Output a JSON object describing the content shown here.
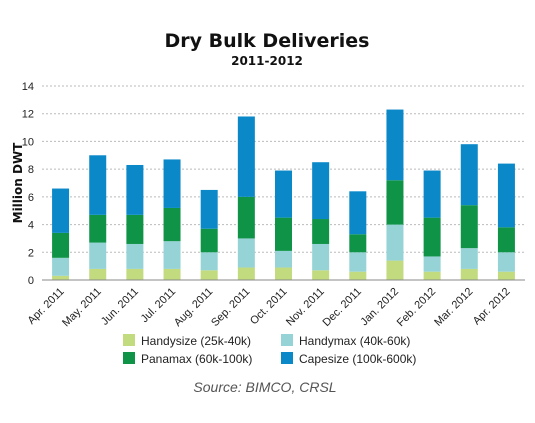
{
  "chart_data": {
    "type": "bar",
    "stacked": true,
    "title": "Dry Bulk Deliveries",
    "subtitle": "2011-2012",
    "xlabel": "",
    "ylabel": "Million DWT",
    "ylim": [
      0,
      14
    ],
    "yticks": [
      "0",
      "2",
      "4",
      "6",
      "8",
      "10",
      "12",
      "14"
    ],
    "grid": true,
    "legend_position": "bottom",
    "categories": [
      "Apr. 2011",
      "May. 2011",
      "Jun. 2011",
      "Jul. 2011",
      "Aug. 2011",
      "Sep. 2011",
      "Oct. 2011",
      "Nov. 2011",
      "Dec. 2011",
      "Jan. 2012",
      "Feb. 2012",
      "Mar. 2012",
      "Apr. 2012"
    ],
    "series": [
      {
        "name": "Handysize (25k-40k)",
        "color": "#c2db7f",
        "values": [
          0.3,
          0.8,
          0.8,
          0.8,
          0.7,
          0.9,
          0.9,
          0.7,
          0.6,
          1.4,
          0.6,
          0.8,
          0.6
        ]
      },
      {
        "name": "Handymax (40k-60k)",
        "color": "#96d3d6",
        "values": [
          1.3,
          1.9,
          1.8,
          2.0,
          1.3,
          2.1,
          1.2,
          1.9,
          1.4,
          2.6,
          1.1,
          1.5,
          1.4
        ]
      },
      {
        "name": "Panamax (60k-100k)",
        "color": "#0f9447",
        "values": [
          1.8,
          2.0,
          2.1,
          2.4,
          1.7,
          3.0,
          2.4,
          1.8,
          1.3,
          3.2,
          2.8,
          3.1,
          1.8
        ]
      },
      {
        "name": "Capesize (100k-600k)",
        "color": "#0a88c8",
        "values": [
          3.2,
          4.3,
          3.6,
          3.5,
          2.8,
          5.8,
          3.4,
          4.1,
          3.1,
          5.1,
          3.4,
          4.4,
          4.6
        ]
      }
    ],
    "source": "Source: BIMCO, CRSL"
  }
}
